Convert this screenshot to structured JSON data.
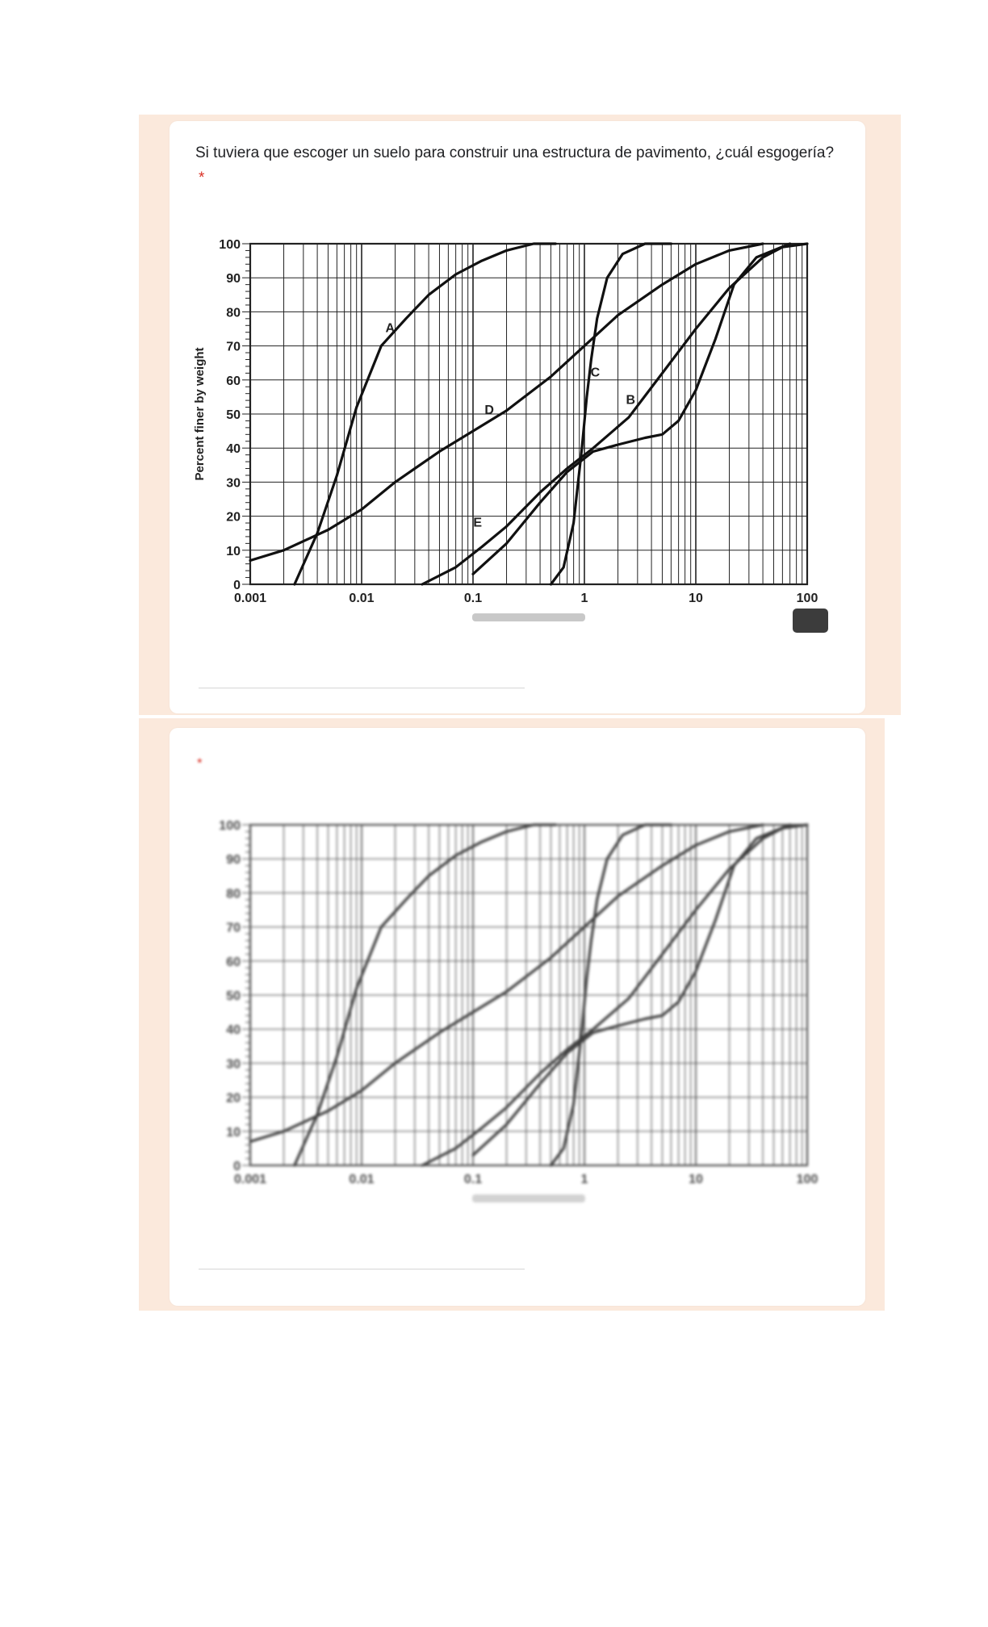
{
  "questions": [
    {
      "text": "Si tuviera que escoger un suelo para construir una estructura de pavimento, ¿cuál esgogería?",
      "required_mark": "*",
      "answer_placeholder": "",
      "image_badge": ""
    },
    {
      "text": "",
      "required_mark": "*",
      "answer_placeholder": ""
    }
  ],
  "colors": {
    "band": "#fbe9dc",
    "card": "#ffffff",
    "required": "#d93025",
    "curve": "#111111",
    "grid": "#222222"
  },
  "chart_data": [
    {
      "type": "line",
      "title": "",
      "xlabel": "",
      "ylabel": "Percent finer by weight",
      "x_scale": "log",
      "xlim": [
        0.001,
        100
      ],
      "ylim": [
        0,
        100
      ],
      "x_ticks": [
        "0.001",
        "0.01",
        "0.1",
        "1",
        "10",
        "100"
      ],
      "y_ticks": [
        "0",
        "10",
        "20",
        "30",
        "40",
        "50",
        "60",
        "70",
        "80",
        "90",
        "100"
      ],
      "grid": true,
      "series": [
        {
          "name": "A",
          "x": [
            0.0025,
            0.004,
            0.006,
            0.009,
            0.015,
            0.025,
            0.04,
            0.07,
            0.12,
            0.2,
            0.35,
            0.55
          ],
          "y": [
            0,
            15,
            32,
            52,
            70,
            78,
            85,
            91,
            95,
            98,
            100,
            100
          ]
        },
        {
          "name": "B",
          "x": [
            0.1,
            0.2,
            0.4,
            0.7,
            1.2,
            2,
            3.5,
            5,
            7,
            10,
            15,
            22,
            35,
            70
          ],
          "y": [
            3,
            12,
            24,
            33,
            39,
            41,
            43,
            44,
            48,
            57,
            72,
            88,
            96,
            100
          ]
        },
        {
          "name": "C",
          "x": [
            0.5,
            0.65,
            0.8,
            0.95,
            1.05,
            1.15,
            1.3,
            1.6,
            2.2,
            3.5,
            6
          ],
          "y": [
            0,
            5,
            18,
            40,
            55,
            66,
            78,
            90,
            97,
            100,
            100
          ]
        },
        {
          "name": "D",
          "x": [
            0.001,
            0.002,
            0.005,
            0.01,
            0.02,
            0.05,
            0.1,
            0.2,
            0.5,
            1,
            2,
            5,
            10,
            20,
            40
          ],
          "y": [
            7,
            10,
            16,
            22,
            30,
            39,
            45,
            51,
            61,
            70,
            79,
            88,
            94,
            98,
            100
          ]
        },
        {
          "name": "E",
          "x": [
            0.035,
            0.07,
            0.12,
            0.2,
            0.4,
            0.7,
            1.2,
            2.5,
            5,
            10,
            20,
            40,
            60,
            100
          ],
          "y": [
            0,
            5,
            11,
            17,
            27,
            34,
            40,
            49,
            62,
            75,
            87,
            96,
            99,
            100
          ]
        }
      ],
      "annotations": [
        "A",
        "B",
        "C",
        "D",
        "E"
      ]
    },
    {
      "type": "line",
      "title": "",
      "xlabel": "",
      "ylabel": "",
      "x_scale": "log",
      "xlim": [
        0.001,
        100
      ],
      "ylim": [
        0,
        100
      ],
      "x_ticks": [
        "0.001",
        "0.01",
        "0.1",
        "1",
        "10",
        "100"
      ],
      "y_ticks": [
        "0",
        "10",
        "20",
        "30",
        "40",
        "50",
        "60",
        "70",
        "80",
        "90",
        "100"
      ],
      "grid": true,
      "series": [
        {
          "x": [
            0.0025,
            0.004,
            0.006,
            0.009,
            0.015,
            0.025,
            0.04,
            0.07,
            0.12,
            0.2,
            0.35,
            0.55
          ],
          "y": [
            0,
            15,
            32,
            52,
            70,
            78,
            85,
            91,
            95,
            98,
            100,
            100
          ]
        },
        {
          "x": [
            0.1,
            0.2,
            0.4,
            0.7,
            1.2,
            2,
            3.5,
            5,
            7,
            10,
            15,
            22,
            35,
            70
          ],
          "y": [
            3,
            12,
            24,
            33,
            39,
            41,
            43,
            44,
            48,
            57,
            72,
            88,
            96,
            100
          ]
        },
        {
          "x": [
            0.5,
            0.65,
            0.8,
            0.95,
            1.05,
            1.15,
            1.3,
            1.6,
            2.2,
            3.5,
            6
          ],
          "y": [
            0,
            5,
            18,
            40,
            55,
            66,
            78,
            90,
            97,
            100,
            100
          ]
        },
        {
          "x": [
            0.001,
            0.002,
            0.005,
            0.01,
            0.02,
            0.05,
            0.1,
            0.2,
            0.5,
            1,
            2,
            5,
            10,
            20,
            40
          ],
          "y": [
            7,
            10,
            16,
            22,
            30,
            39,
            45,
            51,
            61,
            70,
            79,
            88,
            94,
            98,
            100
          ]
        },
        {
          "x": [
            0.035,
            0.07,
            0.12,
            0.2,
            0.4,
            0.7,
            1.2,
            2.5,
            5,
            10,
            20,
            40,
            60,
            100
          ],
          "y": [
            0,
            5,
            11,
            17,
            27,
            34,
            40,
            49,
            62,
            75,
            87,
            96,
            99,
            100
          ]
        }
      ]
    }
  ]
}
